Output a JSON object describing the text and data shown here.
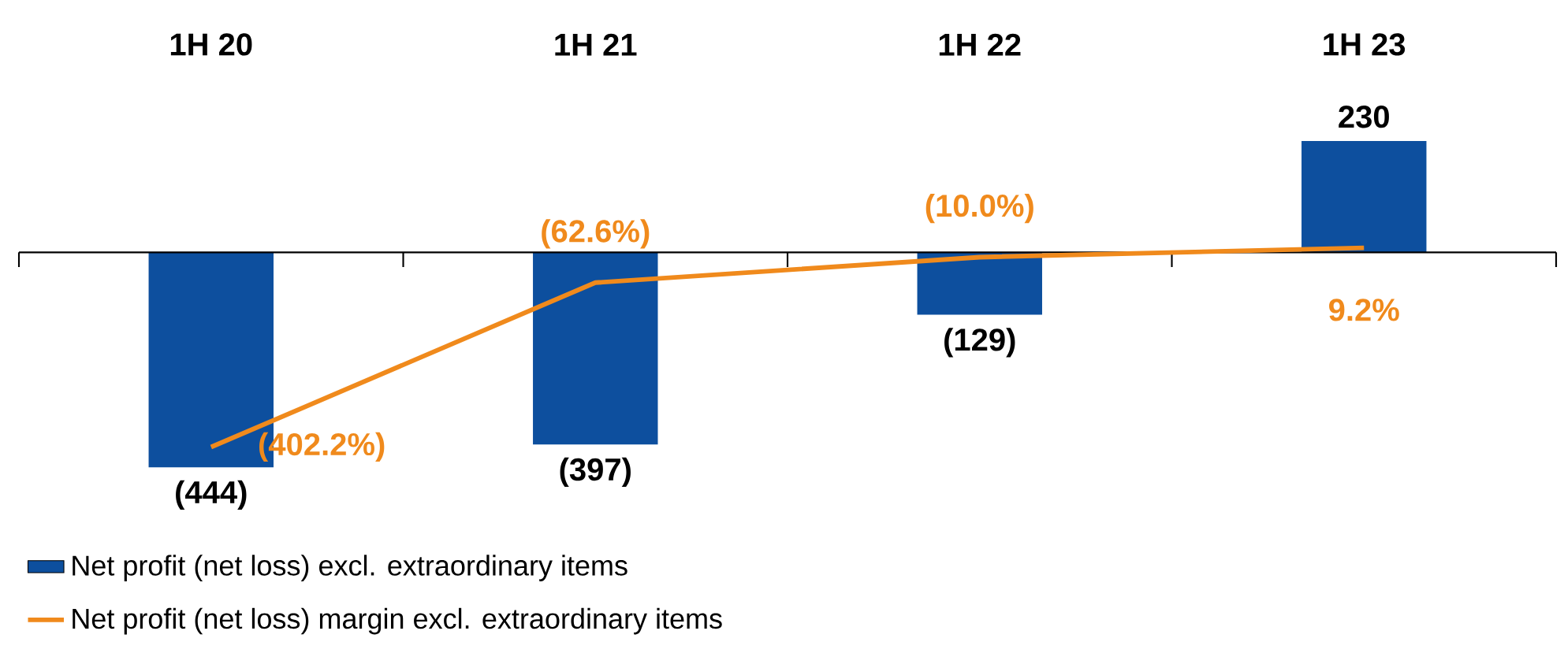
{
  "chart_data": {
    "type": "bar",
    "categories": [
      "1H 20",
      "1H 21",
      "1H 22",
      "1H 23"
    ],
    "series": [
      {
        "name": "Net profit (net loss) excl. extraordinary items",
        "color": "#0d4f9e",
        "values": [
          -444,
          -397,
          -129,
          230
        ],
        "value_labels": [
          "(444)",
          "(397)",
          "(129)",
          "230"
        ]
      },
      {
        "name": "Net profit (net loss) margin excl. extraordinary items",
        "type": "line",
        "axis": "y2",
        "color": "#f08a1c",
        "values": [
          -402.2,
          -62.6,
          -10.0,
          9.2
        ],
        "value_labels": [
          "(402.2%)",
          "(62.6%)",
          "(10.0%)",
          "9.2%"
        ]
      }
    ],
    "legend": "bottom left"
  }
}
